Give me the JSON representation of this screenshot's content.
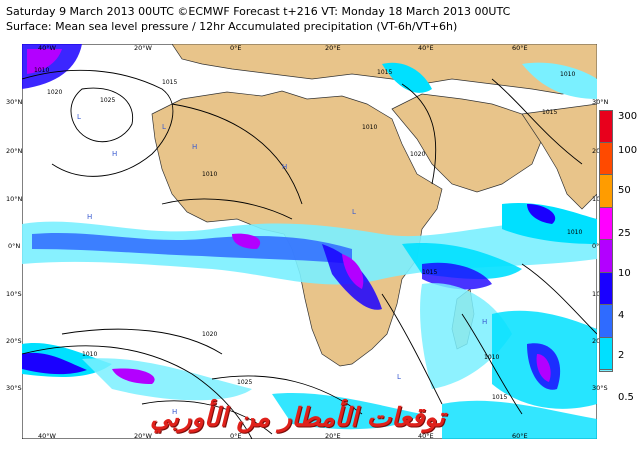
{
  "header": {
    "line1": "Saturday 9 March 2013 00UTC ©ECMWF Forecast t+216 VT: Monday 18 March 2013 00UTC",
    "line2": "Surface: Mean sea level pressure / 12hr Accumulated precipitation (VT-6h/VT+6h)"
  },
  "map": {
    "lon_labels_top": [
      "40°W",
      "20°W",
      "0°E",
      "20°E",
      "40°E",
      "60°E"
    ],
    "lon_labels_bottom": [
      "40°W",
      "20°W",
      "0°E",
      "20°E",
      "40°E",
      "60°E"
    ],
    "lat_labels_left": [
      "30°N",
      "20°N",
      "10°N",
      "0°N",
      "10°S",
      "20°S",
      "30°S"
    ],
    "lat_labels_right": [
      "30°N",
      "20°N",
      "10°N",
      "0°N",
      "10°S",
      "20°S",
      "30°S"
    ],
    "isobar_labels": [
      "1010",
      "1015",
      "1020",
      "1025",
      "1015",
      "1010",
      "1020",
      "1015",
      "1010",
      "1010",
      "1010",
      "1015",
      "1020",
      "1025",
      "1010",
      "1015",
      "1010"
    ],
    "pressure_centres": [
      "H",
      "H",
      "L",
      "L",
      "H",
      "H",
      "L",
      "L",
      "H",
      "H"
    ],
    "ocean_color": "#ffffff",
    "land_color": "#e8c48a"
  },
  "colorbar": {
    "levels": [
      "300",
      "100",
      "50",
      "25",
      "10",
      "4",
      "2",
      "0.5"
    ],
    "colors": [
      "#e8001c",
      "#ff4a00",
      "#ff9c00",
      "#ff00ff",
      "#b300ff",
      "#1a00ff",
      "#2f6bff",
      "#00e0ff",
      "#7af0ff"
    ]
  },
  "watermark": "توقعات الأمطار من الأوربي"
}
